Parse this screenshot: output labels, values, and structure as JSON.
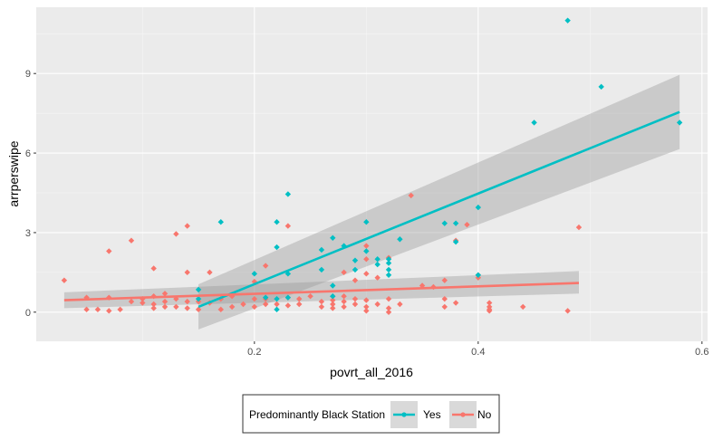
{
  "chart_data": {
    "type": "scatter",
    "xlabel": "povrt_all_2016",
    "ylabel": "arrperswipe",
    "xlim": [
      0.005,
      0.605
    ],
    "ylim": [
      -1.1,
      11.5
    ],
    "x_ticks": [
      0.2,
      0.4,
      0.6
    ],
    "x_tick_labels": [
      "0.2",
      "0.4",
      "0.6"
    ],
    "y_ticks": [
      0,
      3,
      6,
      9
    ],
    "y_tick_labels": [
      "0",
      "3",
      "6",
      "9"
    ],
    "grid": true,
    "legend": {
      "title": "Predominantly Black Station",
      "position": "bottom",
      "entries": [
        "Yes",
        "No"
      ]
    },
    "series": [
      {
        "name": "Yes",
        "color": "#00BFC4",
        "points": [
          [
            0.15,
            0.85
          ],
          [
            0.15,
            0.5
          ],
          [
            0.17,
            3.4
          ],
          [
            0.2,
            1.45
          ],
          [
            0.21,
            0.55
          ],
          [
            0.22,
            3.4
          ],
          [
            0.22,
            2.45
          ],
          [
            0.22,
            0.5
          ],
          [
            0.22,
            0.1
          ],
          [
            0.23,
            4.45
          ],
          [
            0.23,
            1.45
          ],
          [
            0.23,
            0.55
          ],
          [
            0.26,
            2.35
          ],
          [
            0.26,
            1.6
          ],
          [
            0.27,
            2.8
          ],
          [
            0.27,
            1.0
          ],
          [
            0.27,
            0.6
          ],
          [
            0.28,
            2.5
          ],
          [
            0.29,
            1.95
          ],
          [
            0.29,
            1.6
          ],
          [
            0.3,
            3.4
          ],
          [
            0.3,
            2.3
          ],
          [
            0.31,
            2.0
          ],
          [
            0.31,
            1.8
          ],
          [
            0.32,
            2.0
          ],
          [
            0.32,
            1.85
          ],
          [
            0.32,
            1.6
          ],
          [
            0.32,
            1.4
          ],
          [
            0.33,
            2.75
          ],
          [
            0.37,
            3.35
          ],
          [
            0.38,
            3.35
          ],
          [
            0.38,
            2.65
          ],
          [
            0.4,
            3.95
          ],
          [
            0.4,
            1.4
          ],
          [
            0.45,
            7.15
          ],
          [
            0.48,
            11.0
          ],
          [
            0.51,
            8.5
          ],
          [
            0.58,
            7.15
          ]
        ],
        "fit": {
          "x": [
            0.15,
            0.58
          ],
          "y": [
            0.2,
            7.55
          ],
          "ci_lower": [
            -0.65,
            6.15
          ],
          "ci_upper": [
            1.05,
            8.95
          ]
        }
      },
      {
        "name": "No",
        "color": "#F8766D",
        "points": [
          [
            0.03,
            1.2
          ],
          [
            0.05,
            0.55
          ],
          [
            0.05,
            0.1
          ],
          [
            0.06,
            0.1
          ],
          [
            0.07,
            2.3
          ],
          [
            0.07,
            0.55
          ],
          [
            0.07,
            0.05
          ],
          [
            0.08,
            0.1
          ],
          [
            0.09,
            2.7
          ],
          [
            0.09,
            0.4
          ],
          [
            0.1,
            0.5
          ],
          [
            0.1,
            0.35
          ],
          [
            0.11,
            1.65
          ],
          [
            0.11,
            0.6
          ],
          [
            0.11,
            0.3
          ],
          [
            0.11,
            0.15
          ],
          [
            0.12,
            0.7
          ],
          [
            0.12,
            0.4
          ],
          [
            0.12,
            0.2
          ],
          [
            0.13,
            2.95
          ],
          [
            0.13,
            0.5
          ],
          [
            0.13,
            0.2
          ],
          [
            0.14,
            3.25
          ],
          [
            0.14,
            1.5
          ],
          [
            0.14,
            0.4
          ],
          [
            0.14,
            0.15
          ],
          [
            0.15,
            0.4
          ],
          [
            0.15,
            0.1
          ],
          [
            0.16,
            1.5
          ],
          [
            0.16,
            0.35
          ],
          [
            0.17,
            0.5
          ],
          [
            0.17,
            0.1
          ],
          [
            0.18,
            0.6
          ],
          [
            0.18,
            0.2
          ],
          [
            0.19,
            0.3
          ],
          [
            0.2,
            1.15
          ],
          [
            0.2,
            0.5
          ],
          [
            0.2,
            0.2
          ],
          [
            0.21,
            1.75
          ],
          [
            0.21,
            0.5
          ],
          [
            0.21,
            0.3
          ],
          [
            0.22,
            0.3
          ],
          [
            0.23,
            3.25
          ],
          [
            0.23,
            0.55
          ],
          [
            0.23,
            0.25
          ],
          [
            0.24,
            0.5
          ],
          [
            0.24,
            0.3
          ],
          [
            0.25,
            0.6
          ],
          [
            0.26,
            0.4
          ],
          [
            0.26,
            0.2
          ],
          [
            0.27,
            0.6
          ],
          [
            0.27,
            0.45
          ],
          [
            0.27,
            0.3
          ],
          [
            0.27,
            0.15
          ],
          [
            0.28,
            1.5
          ],
          [
            0.28,
            0.6
          ],
          [
            0.28,
            0.4
          ],
          [
            0.28,
            0.2
          ],
          [
            0.29,
            1.2
          ],
          [
            0.29,
            0.5
          ],
          [
            0.29,
            0.3
          ],
          [
            0.3,
            2.5
          ],
          [
            0.3,
            2.0
          ],
          [
            0.3,
            1.45
          ],
          [
            0.3,
            0.45
          ],
          [
            0.3,
            0.2
          ],
          [
            0.3,
            0.05
          ],
          [
            0.31,
            1.3
          ],
          [
            0.31,
            0.3
          ],
          [
            0.32,
            2.05
          ],
          [
            0.32,
            0.5
          ],
          [
            0.32,
            0.15
          ],
          [
            0.32,
            0.0
          ],
          [
            0.33,
            0.3
          ],
          [
            0.34,
            4.4
          ],
          [
            0.35,
            1.0
          ],
          [
            0.36,
            0.95
          ],
          [
            0.37,
            1.2
          ],
          [
            0.37,
            0.5
          ],
          [
            0.37,
            0.2
          ],
          [
            0.38,
            2.7
          ],
          [
            0.38,
            0.35
          ],
          [
            0.39,
            3.3
          ],
          [
            0.4,
            1.4
          ],
          [
            0.4,
            1.3
          ],
          [
            0.41,
            0.35
          ],
          [
            0.41,
            0.2
          ],
          [
            0.41,
            0.1
          ],
          [
            0.41,
            0.05
          ],
          [
            0.44,
            0.2
          ],
          [
            0.48,
            0.05
          ],
          [
            0.49,
            3.2
          ]
        ],
        "fit": {
          "x": [
            0.03,
            0.49
          ],
          "y": [
            0.45,
            1.1
          ],
          "ci_lower": [
            0.15,
            0.7
          ],
          "ci_upper": [
            0.75,
            1.55
          ]
        }
      }
    ]
  }
}
